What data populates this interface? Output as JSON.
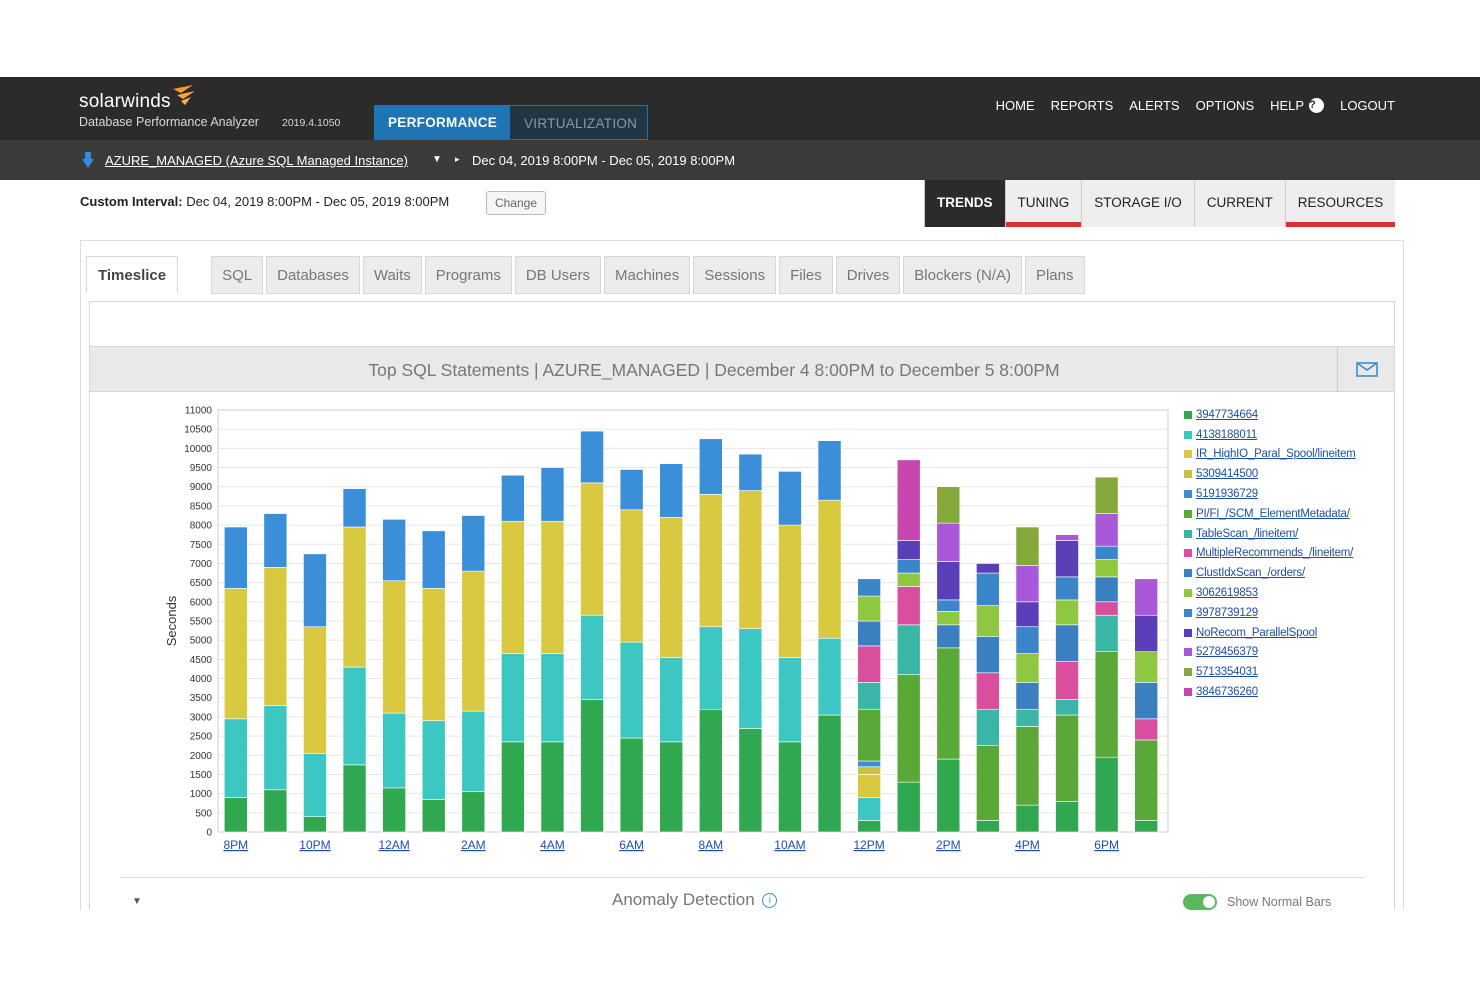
{
  "app": {
    "brand": "solarwinds",
    "product": "Database Performance Analyzer",
    "version": "2019.4.1050",
    "main_tabs": [
      {
        "label": "PERFORMANCE",
        "active": true
      },
      {
        "label": "VIRTUALIZATION",
        "active": false
      }
    ],
    "top_nav": [
      "HOME",
      "REPORTS",
      "ALERTS",
      "OPTIONS",
      "HELP",
      "LOGOUT"
    ],
    "help_icon": "?"
  },
  "instance": {
    "name": "AZURE_MANAGED (Azure SQL Managed Instance)",
    "caret": "▼",
    "arrow": "▸",
    "range": "Dec 04, 2019 8:00PM - Dec 05, 2019 8:00PM"
  },
  "interval": {
    "label": "Custom Interval:",
    "value": "Dec 04, 2019 8:00PM - Dec 05, 2019 8:00PM",
    "change_button": "Change"
  },
  "view_tabs": [
    {
      "label": "TRENDS",
      "active": true,
      "marker": false
    },
    {
      "label": "TUNING",
      "active": false,
      "marker": true
    },
    {
      "label": "STORAGE I/O",
      "active": false,
      "marker": false
    },
    {
      "label": "CURRENT",
      "active": false,
      "marker": false
    },
    {
      "label": "RESOURCES",
      "active": false,
      "marker": true
    }
  ],
  "sub_tabs": [
    "Timeslice",
    "SQL",
    "Databases",
    "Waits",
    "Programs",
    "DB Users",
    "Machines",
    "Sessions",
    "Files",
    "Drives",
    "Blockers (N/A)",
    "Plans"
  ],
  "chart_header": "Top SQL Statements  |  AZURE_MANAGED  |  December 4 8:00PM to December 5 8:00PM",
  "chart_data": {
    "type": "bar",
    "stacked": true,
    "ylabel": "Seconds",
    "xlabel": "",
    "ylim": [
      0,
      11000
    ],
    "ytick_step": 500,
    "grid": true,
    "legend": "right",
    "categories": [
      "8PM",
      "9PM",
      "10PM",
      "11PM",
      "12AM",
      "1AM",
      "2AM",
      "3AM",
      "4AM",
      "5AM",
      "6AM",
      "7AM",
      "8AM",
      "9AM",
      "10AM",
      "11AM",
      "12PM",
      "1PM",
      "2PM",
      "3PM",
      "4PM",
      "5PM",
      "6PM",
      "7PM"
    ],
    "x_tick_labels": [
      "8PM",
      "10PM",
      "12AM",
      "2AM",
      "4AM",
      "6AM",
      "8AM",
      "10AM",
      "12PM",
      "2PM",
      "4PM",
      "6PM"
    ],
    "colors": {
      "3947734664": "#2fa84f",
      "4138188011": "#3cc7c2",
      "IR_HighIO_Paral_Spool/lineitem": "#d9c941",
      "5309414500": "#c9c23e",
      "5191936729": "#3a8fd8",
      "PI/FI_/SCM_ElementMetadata/": "#5aa838",
      "TableScan_/lineitem/": "#39b6a6",
      "MultipleRecommends_/lineitem/": "#d94f9e",
      "ClustIdxScan_/orders/": "#3a7fc0",
      "3062619853": "#8fc840",
      "3978739129": "#3a86c8",
      "NoRecom_ParallelSpool": "#5b3fb8",
      "5278456379": "#a958d9",
      "5713354031": "#84a83a",
      "3846736260": "#c746b0"
    },
    "series": [
      {
        "name": "3947734664",
        "values": [
          900,
          1100,
          400,
          1750,
          1150,
          850,
          1050,
          2350,
          2350,
          3450,
          2450,
          2350,
          3200,
          2700,
          2350,
          3050,
          300,
          1300,
          1900,
          300,
          700,
          800,
          1950,
          300
        ]
      },
      {
        "name": "4138188011",
        "values": [
          2050,
          2200,
          1650,
          2550,
          1950,
          2050,
          2100,
          2300,
          2300,
          2200,
          2500,
          2200,
          2150,
          2600,
          2200,
          2000,
          600,
          0,
          0,
          0,
          0,
          0,
          0,
          0
        ]
      },
      {
        "name": "IR_HighIO_Paral_Spool/lineitem",
        "values": [
          3400,
          3600,
          3300,
          3650,
          3450,
          3450,
          3650,
          3450,
          3450,
          3450,
          3450,
          3650,
          3450,
          3600,
          3450,
          3600,
          600,
          0,
          0,
          0,
          0,
          0,
          0,
          0
        ]
      },
      {
        "name": "5309414500",
        "values": [
          0,
          0,
          0,
          0,
          0,
          0,
          0,
          0,
          0,
          0,
          0,
          0,
          0,
          0,
          0,
          0,
          200,
          0,
          0,
          0,
          0,
          0,
          0,
          0
        ]
      },
      {
        "name": "5191936729",
        "values": [
          1600,
          1400,
          1900,
          1000,
          1600,
          1500,
          1450,
          1200,
          1400,
          1350,
          1050,
          1400,
          1450,
          950,
          1400,
          1550,
          150,
          0,
          0,
          0,
          0,
          0,
          0,
          0
        ]
      },
      {
        "name": "PI/FI_/SCM_ElementMetadata/",
        "values": [
          0,
          0,
          0,
          0,
          0,
          0,
          0,
          0,
          0,
          0,
          0,
          0,
          0,
          0,
          0,
          0,
          1350,
          2800,
          2900,
          1950,
          2050,
          2250,
          2750,
          2100
        ]
      },
      {
        "name": "TableScan_/lineitem/",
        "values": [
          0,
          0,
          0,
          0,
          0,
          0,
          0,
          0,
          0,
          0,
          0,
          0,
          0,
          0,
          0,
          0,
          700,
          1300,
          0,
          950,
          450,
          400,
          950,
          0
        ]
      },
      {
        "name": "MultipleRecommends_/lineitem/",
        "values": [
          0,
          0,
          0,
          0,
          0,
          0,
          0,
          0,
          0,
          0,
          0,
          0,
          0,
          0,
          0,
          0,
          950,
          1000,
          0,
          950,
          0,
          1000,
          350,
          550
        ]
      },
      {
        "name": "ClustIdxScan_/orders/",
        "values": [
          0,
          0,
          0,
          0,
          0,
          0,
          0,
          0,
          0,
          0,
          0,
          0,
          0,
          0,
          0,
          0,
          650,
          0,
          600,
          950,
          700,
          950,
          650,
          950
        ]
      },
      {
        "name": "3062619853",
        "values": [
          0,
          0,
          0,
          0,
          0,
          0,
          0,
          0,
          0,
          0,
          0,
          0,
          0,
          0,
          0,
          0,
          650,
          350,
          350,
          800,
          750,
          650,
          450,
          800
        ]
      },
      {
        "name": "3978739129",
        "values": [
          0,
          0,
          0,
          0,
          0,
          0,
          0,
          0,
          0,
          0,
          0,
          0,
          0,
          0,
          0,
          0,
          450,
          350,
          300,
          850,
          700,
          600,
          350,
          0
        ]
      },
      {
        "name": "NoRecom_ParallelSpool",
        "values": [
          0,
          0,
          0,
          0,
          0,
          0,
          0,
          0,
          0,
          0,
          0,
          0,
          0,
          0,
          0,
          0,
          0,
          500,
          1000,
          250,
          650,
          950,
          0,
          950
        ]
      },
      {
        "name": "5278456379",
        "values": [
          0,
          0,
          0,
          0,
          0,
          0,
          0,
          0,
          0,
          0,
          0,
          0,
          0,
          0,
          0,
          0,
          0,
          0,
          1000,
          0,
          950,
          150,
          850,
          950
        ]
      },
      {
        "name": "5713354031",
        "values": [
          0,
          0,
          0,
          0,
          0,
          0,
          0,
          0,
          0,
          0,
          0,
          0,
          0,
          0,
          0,
          0,
          0,
          0,
          950,
          0,
          1000,
          0,
          950,
          0
        ]
      },
      {
        "name": "3846736260",
        "values": [
          0,
          0,
          0,
          0,
          0,
          0,
          0,
          0,
          0,
          0,
          0,
          0,
          0,
          0,
          0,
          0,
          0,
          2100,
          0,
          0,
          0,
          0,
          0,
          0
        ]
      }
    ]
  },
  "anomaly": {
    "label": "Anomaly Detection",
    "info_icon": "i",
    "caret": "▼",
    "toggle_label": "Show Normal Bars",
    "toggle_on": true
  }
}
